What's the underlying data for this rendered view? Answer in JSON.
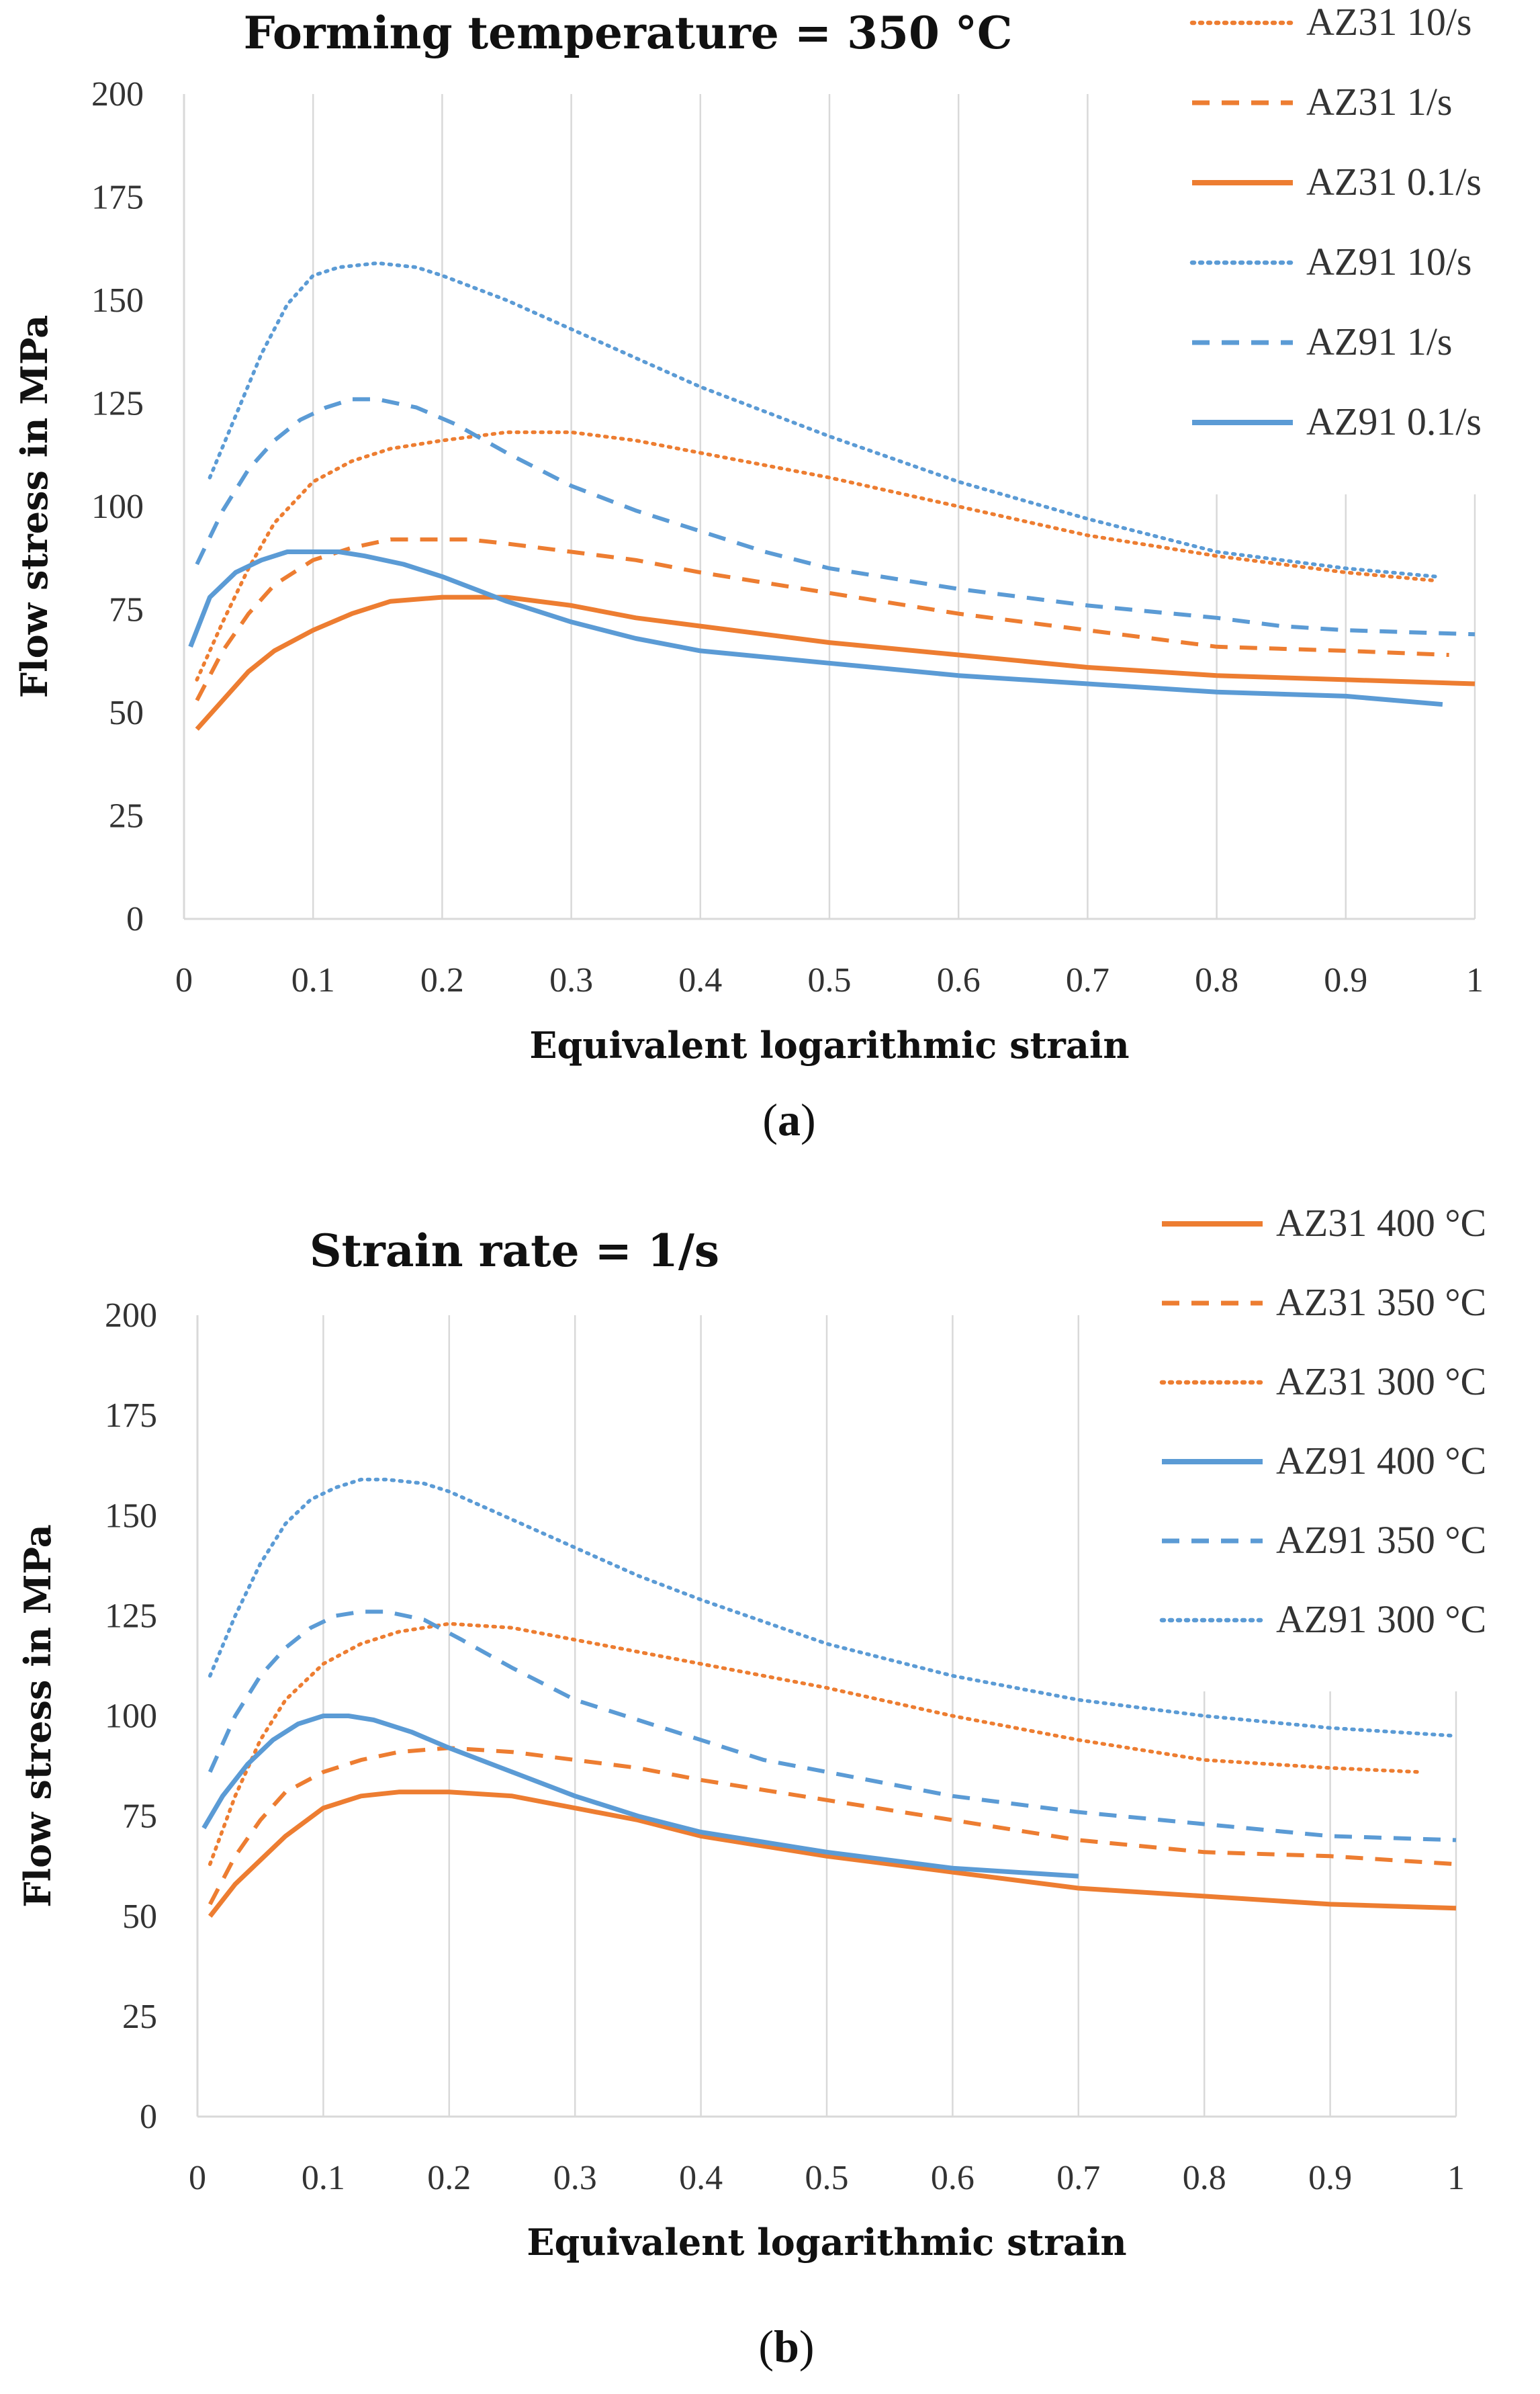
{
  "colors": {
    "orange": "#ED7D31",
    "blue": "#5B9BD5",
    "grid": "#D9D9D9",
    "text": "#333333"
  },
  "chart_data": [
    {
      "type": "line",
      "title": "Forming temperature = 350 °C",
      "xlabel": "Equivalent logarithmic strain",
      "ylabel": "Flow stress in MPa",
      "xlim": [
        0,
        1
      ],
      "ylim": [
        0,
        200
      ],
      "xticks": [
        "0",
        "0.1",
        "0.2",
        "0.3",
        "0.4",
        "0.5",
        "0.6",
        "0.7",
        "0.8",
        "0.9",
        "1"
      ],
      "yticks": [
        "0",
        "25",
        "50",
        "75",
        "100",
        "125",
        "150",
        "175",
        "200"
      ],
      "grid": "vertical",
      "legend_position": "top-right",
      "caption": "a",
      "series": [
        {
          "name": "AZ31 10/s",
          "color": "#ED7D31",
          "style": "dotted",
          "x": [
            0.01,
            0.03,
            0.05,
            0.07,
            0.1,
            0.13,
            0.16,
            0.2,
            0.25,
            0.3,
            0.35,
            0.4,
            0.5,
            0.6,
            0.7,
            0.8,
            0.9,
            0.97
          ],
          "y": [
            58,
            72,
            85,
            96,
            106,
            111,
            114,
            116,
            118,
            118,
            116,
            113,
            107,
            100,
            93,
            88,
            84,
            82
          ]
        },
        {
          "name": "AZ31 1/s",
          "color": "#ED7D31",
          "style": "dashed",
          "x": [
            0.01,
            0.03,
            0.05,
            0.07,
            0.1,
            0.13,
            0.16,
            0.19,
            0.22,
            0.25,
            0.3,
            0.35,
            0.4,
            0.5,
            0.6,
            0.7,
            0.8,
            0.9,
            0.98
          ],
          "y": [
            53,
            65,
            74,
            81,
            87,
            90,
            92,
            92,
            92,
            91,
            89,
            87,
            84,
            79,
            74,
            70,
            66,
            65,
            64
          ]
        },
        {
          "name": "AZ31 0.1/s",
          "color": "#ED7D31",
          "style": "solid",
          "x": [
            0.01,
            0.03,
            0.05,
            0.07,
            0.1,
            0.13,
            0.16,
            0.2,
            0.25,
            0.3,
            0.35,
            0.4,
            0.5,
            0.6,
            0.7,
            0.8,
            0.9,
            1.0
          ],
          "y": [
            46,
            53,
            60,
            65,
            70,
            74,
            77,
            78,
            78,
            76,
            73,
            71,
            67,
            64,
            61,
            59,
            58,
            57
          ]
        },
        {
          "name": "AZ91 10/s",
          "color": "#5B9BD5",
          "style": "dotted",
          "x": [
            0.02,
            0.04,
            0.06,
            0.08,
            0.1,
            0.12,
            0.15,
            0.18,
            0.2,
            0.25,
            0.3,
            0.35,
            0.4,
            0.5,
            0.6,
            0.7,
            0.8,
            0.9,
            0.97
          ],
          "y": [
            107,
            122,
            137,
            149,
            156,
            158,
            159,
            158,
            156,
            150,
            143,
            136,
            129,
            117,
            106,
            97,
            89,
            85,
            83
          ]
        },
        {
          "name": "AZ91 1/s",
          "color": "#5B9BD5",
          "style": "dashed",
          "x": [
            0.01,
            0.03,
            0.05,
            0.07,
            0.09,
            0.11,
            0.13,
            0.15,
            0.18,
            0.21,
            0.25,
            0.3,
            0.35,
            0.4,
            0.45,
            0.5,
            0.6,
            0.7,
            0.8,
            0.85,
            0.9,
            1.0
          ],
          "y": [
            86,
            99,
            109,
            116,
            121,
            124,
            126,
            126,
            124,
            120,
            113,
            105,
            99,
            94,
            89,
            85,
            80,
            76,
            73,
            71,
            70,
            69
          ]
        },
        {
          "name": "AZ91 0.1/s",
          "color": "#5B9BD5",
          "style": "solid",
          "x": [
            0.005,
            0.02,
            0.04,
            0.06,
            0.08,
            0.1,
            0.12,
            0.14,
            0.17,
            0.2,
            0.25,
            0.3,
            0.35,
            0.4,
            0.5,
            0.6,
            0.7,
            0.8,
            0.9,
            0.975
          ],
          "y": [
            66,
            78,
            84,
            87,
            89,
            89,
            89,
            88,
            86,
            83,
            77,
            72,
            68,
            65,
            62,
            59,
            57,
            55,
            54,
            52
          ]
        }
      ]
    },
    {
      "type": "line",
      "title": "Strain rate = 1/s",
      "xlabel": "Equivalent logarithmic strain",
      "ylabel": "Flow stress in MPa",
      "xlim": [
        0,
        1
      ],
      "ylim": [
        0,
        200
      ],
      "xticks": [
        "0",
        "0.1",
        "0.2",
        "0.3",
        "0.4",
        "0.5",
        "0.6",
        "0.7",
        "0.8",
        "0.9",
        "1"
      ],
      "yticks": [
        "0",
        "25",
        "50",
        "75",
        "100",
        "125",
        "150",
        "175",
        "200"
      ],
      "grid": "vertical",
      "legend_position": "top-right",
      "caption": "b",
      "series": [
        {
          "name": "AZ31 400 °C",
          "color": "#ED7D31",
          "style": "solid",
          "x": [
            0.01,
            0.03,
            0.05,
            0.07,
            0.1,
            0.13,
            0.16,
            0.2,
            0.25,
            0.3,
            0.35,
            0.4,
            0.5,
            0.6,
            0.7,
            0.8,
            0.9,
            1.0
          ],
          "y": [
            50,
            58,
            64,
            70,
            77,
            80,
            81,
            81,
            80,
            77,
            74,
            70,
            65,
            61,
            57,
            55,
            53,
            52
          ]
        },
        {
          "name": "AZ31 350 °C",
          "color": "#ED7D31",
          "style": "dashed",
          "x": [
            0.01,
            0.03,
            0.05,
            0.07,
            0.1,
            0.13,
            0.16,
            0.2,
            0.25,
            0.3,
            0.35,
            0.4,
            0.5,
            0.6,
            0.7,
            0.8,
            0.9,
            1.0
          ],
          "y": [
            53,
            65,
            74,
            81,
            86,
            89,
            91,
            92,
            91,
            89,
            87,
            84,
            79,
            74,
            69,
            66,
            65,
            63
          ]
        },
        {
          "name": "AZ31 300 °C",
          "color": "#ED7D31",
          "style": "dotted",
          "x": [
            0.01,
            0.03,
            0.05,
            0.07,
            0.1,
            0.13,
            0.16,
            0.2,
            0.25,
            0.3,
            0.35,
            0.4,
            0.5,
            0.6,
            0.7,
            0.8,
            0.9,
            0.97
          ],
          "y": [
            63,
            80,
            94,
            104,
            113,
            118,
            121,
            123,
            122,
            119,
            116,
            113,
            107,
            100,
            94,
            89,
            87,
            86
          ]
        },
        {
          "name": "AZ91 400 °C",
          "color": "#5B9BD5",
          "style": "solid",
          "x": [
            0.005,
            0.02,
            0.04,
            0.06,
            0.08,
            0.1,
            0.12,
            0.14,
            0.17,
            0.2,
            0.25,
            0.3,
            0.35,
            0.4,
            0.5,
            0.6,
            0.7
          ],
          "y": [
            72,
            80,
            88,
            94,
            98,
            100,
            100,
            99,
            96,
            92,
            86,
            80,
            75,
            71,
            66,
            62,
            60
          ]
        },
        {
          "name": "AZ91 350 °C",
          "color": "#5B9BD5",
          "style": "dashed",
          "x": [
            0.01,
            0.03,
            0.05,
            0.07,
            0.09,
            0.11,
            0.13,
            0.15,
            0.18,
            0.21,
            0.25,
            0.3,
            0.35,
            0.4,
            0.45,
            0.5,
            0.6,
            0.7,
            0.8,
            0.9,
            1.0
          ],
          "y": [
            86,
            100,
            110,
            117,
            122,
            125,
            126,
            126,
            124,
            119,
            112,
            104,
            99,
            94,
            89,
            86,
            80,
            76,
            73,
            70,
            69
          ]
        },
        {
          "name": "AZ91 300 °C",
          "color": "#5B9BD5",
          "style": "dotted",
          "x": [
            0.01,
            0.03,
            0.05,
            0.07,
            0.09,
            0.11,
            0.13,
            0.15,
            0.18,
            0.2,
            0.25,
            0.3,
            0.35,
            0.4,
            0.5,
            0.6,
            0.7,
            0.8,
            0.9,
            1.0
          ],
          "y": [
            110,
            125,
            138,
            148,
            154,
            157,
            159,
            159,
            158,
            156,
            149,
            142,
            135,
            129,
            118,
            110,
            104,
            100,
            97,
            95
          ]
        }
      ]
    }
  ]
}
